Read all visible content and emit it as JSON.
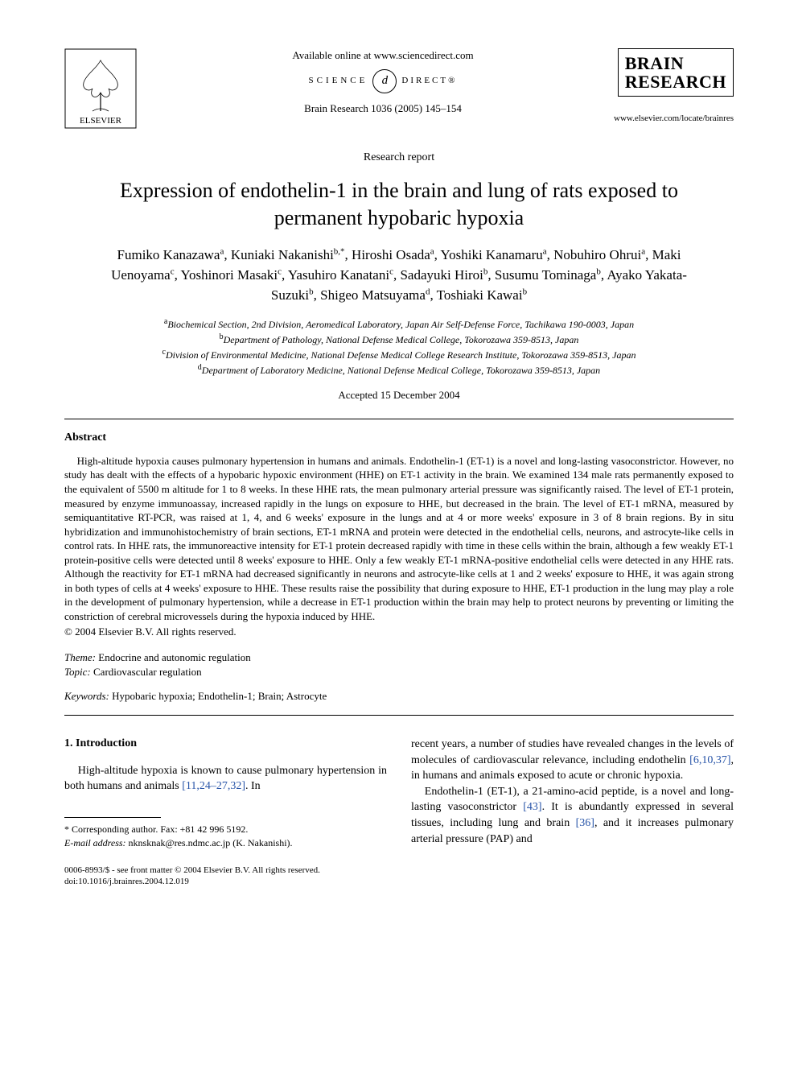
{
  "header": {
    "available_online": "Available online at www.sciencedirect.com",
    "sd_left": "SCIENCE",
    "sd_right": "DIRECT®",
    "sd_d": "d",
    "journal_ref": "Brain Research 1036 (2005) 145–154",
    "journal_logo_line1": "BRAIN",
    "journal_logo_line2": "RESEARCH",
    "journal_url": "www.elsevier.com/locate/brainres"
  },
  "article": {
    "type": "Research report",
    "title": "Expression of endothelin-1 in the brain and lung of rats exposed to permanent hypobaric hypoxia",
    "authors_html": "Fumiko Kanazawa<sup>a</sup>, Kuniaki Nakanishi<sup>b,*</sup>, Hiroshi Osada<sup>a</sup>, Yoshiki Kanamaru<sup>a</sup>, Nobuhiro Ohrui<sup>a</sup>, Maki Uenoyama<sup>c</sup>, Yoshinori Masaki<sup>c</sup>, Yasuhiro Kanatani<sup>c</sup>, Sadayuki Hiroi<sup>b</sup>, Susumu Tominaga<sup>b</sup>, Ayako Yakata-Suzuki<sup>b</sup>, Shigeo Matsuyama<sup>d</sup>, Toshiaki Kawai<sup>b</sup>",
    "affiliations": [
      {
        "sup": "a",
        "text": "Biochemical Section, 2nd Division, Aeromedical Laboratory, Japan Air Self-Defense Force, Tachikawa 190-0003, Japan"
      },
      {
        "sup": "b",
        "text": "Department of Pathology, National Defense Medical College, Tokorozawa 359-8513, Japan"
      },
      {
        "sup": "c",
        "text": "Division of Environmental Medicine, National Defense Medical College Research Institute, Tokorozawa 359-8513, Japan"
      },
      {
        "sup": "d",
        "text": "Department of Laboratory Medicine, National Defense Medical College, Tokorozawa 359-8513, Japan"
      }
    ],
    "accepted": "Accepted 15 December 2004"
  },
  "abstract": {
    "heading": "Abstract",
    "body": "High-altitude hypoxia causes pulmonary hypertension in humans and animals. Endothelin-1 (ET-1) is a novel and long-lasting vasoconstrictor. However, no study has dealt with the effects of a hypobaric hypoxic environment (HHE) on ET-1 activity in the brain. We examined 134 male rats permanently exposed to the equivalent of 5500 m altitude for 1 to 8 weeks. In these HHE rats, the mean pulmonary arterial pressure was significantly raised. The level of ET-1 protein, measured by enzyme immunoassay, increased rapidly in the lungs on exposure to HHE, but decreased in the brain. The level of ET-1 mRNA, measured by semiquantitative RT-PCR, was raised at 1, 4, and 6 weeks' exposure in the lungs and at 4 or more weeks' exposure in 3 of 8 brain regions. By in situ hybridization and immunohistochemistry of brain sections, ET-1 mRNA and protein were detected in the endothelial cells, neurons, and astrocyte-like cells in control rats. In HHE rats, the immunoreactive intensity for ET-1 protein decreased rapidly with time in these cells within the brain, although a few weakly ET-1 protein-positive cells were detected until 8 weeks' exposure to HHE. Only a few weakly ET-1 mRNA-positive endothelial cells were detected in any HHE rats. Although the reactivity for ET-1 mRNA had decreased significantly in neurons and astrocyte-like cells at 1 and 2 weeks' exposure to HHE, it was again strong in both types of cells at 4 weeks' exposure to HHE. These results raise the possibility that during exposure to HHE, ET-1 production in the lung may play a role in the development of pulmonary hypertension, while a decrease in ET-1 production within the brain may help to protect neurons by preventing or limiting the constriction of cerebral microvessels during the hypoxia induced by HHE.",
    "copyright": "© 2004 Elsevier B.V. All rights reserved."
  },
  "meta": {
    "theme_label": "Theme:",
    "theme_value": " Endocrine and autonomic regulation",
    "topic_label": "Topic:",
    "topic_value": " Cardiovascular regulation",
    "keywords_label": "Keywords:",
    "keywords_value": " Hypobaric hypoxia; Endothelin-1; Brain; Astrocyte"
  },
  "intro": {
    "heading": "1. Introduction",
    "col1_pre": "High-altitude hypoxia is known to cause pulmonary hypertension in both humans and animals ",
    "col1_ref": "[11,24–27,32]",
    "col1_post": ". In",
    "col2_p1_pre": "recent years, a number of studies have revealed changes in the levels of molecules of cardiovascular relevance, including endothelin ",
    "col2_p1_ref": "[6,10,37]",
    "col2_p1_post": ", in humans and animals exposed to acute or chronic hypoxia.",
    "col2_p2_pre": "Endothelin-1 (ET-1), a 21-amino-acid peptide, is a novel and long-lasting vasoconstrictor ",
    "col2_p2_ref1": "[43]",
    "col2_p2_mid": ". It is abundantly expressed in several tissues, including lung and brain ",
    "col2_p2_ref2": "[36]",
    "col2_p2_post": ", and it increases pulmonary arterial pressure (PAP) and"
  },
  "footnotes": {
    "corr": "* Corresponding author. Fax: +81 42 996 5192.",
    "email_label": "E-mail address:",
    "email_value": " nknsknak@res.ndmc.ac.jp (K. Nakanishi)."
  },
  "bottom": {
    "line1": "0006-8993/$ - see front matter © 2004 Elsevier B.V. All rights reserved.",
    "line2": "doi:10.1016/j.brainres.2004.12.019"
  },
  "style": {
    "link_color": "#2754a8"
  }
}
